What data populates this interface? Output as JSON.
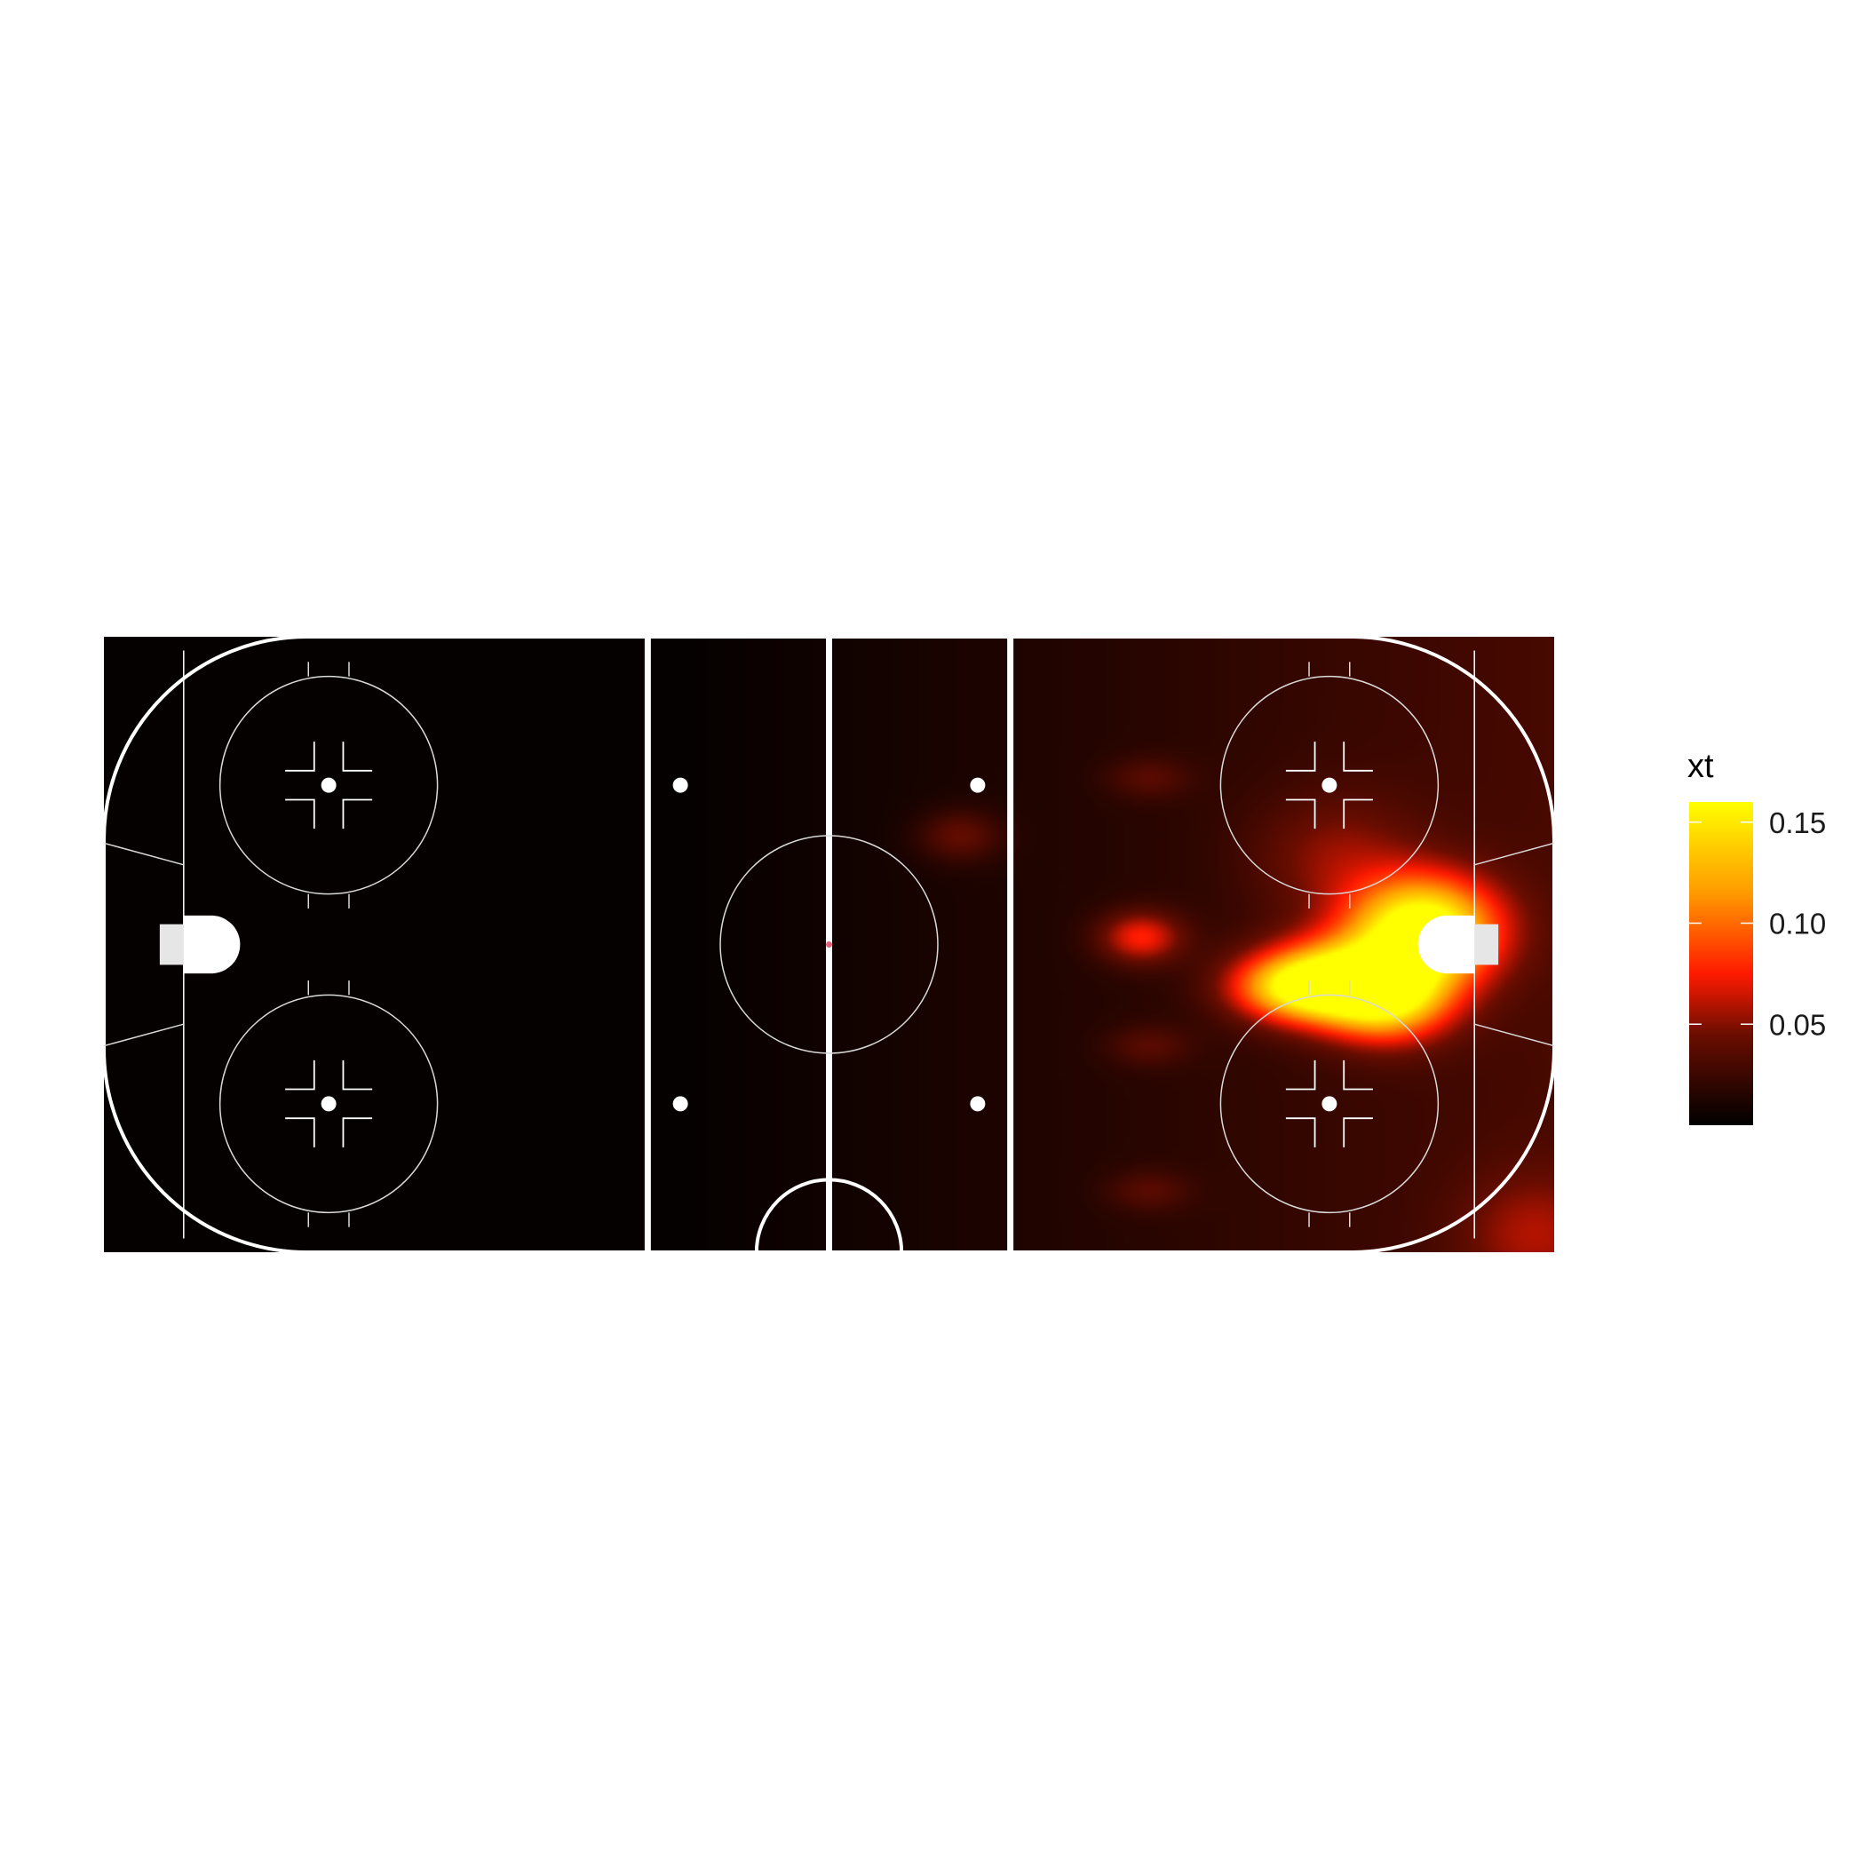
{
  "chart_data": {
    "type": "heatmap",
    "title": "",
    "xlabel": "",
    "ylabel": "",
    "fill_variable": "xt",
    "x_range": [
      -100,
      100
    ],
    "y_range": [
      -42.5,
      42.5
    ],
    "color_scale": {
      "stops": [
        {
          "value": 0.0,
          "color": "#000000"
        },
        {
          "value": 0.045,
          "color": "#6b0d00"
        },
        {
          "value": 0.075,
          "color": "#ff1a00"
        },
        {
          "value": 0.115,
          "color": "#ff9a00"
        },
        {
          "value": 0.16,
          "color": "#ffff00"
        }
      ],
      "limits": [
        0.0,
        0.16
      ],
      "legend_ticks": [
        {
          "value": 0.05,
          "label": "0.05"
        },
        {
          "value": 0.1,
          "label": "0.10"
        },
        {
          "value": 0.15,
          "label": "0.15"
        }
      ]
    },
    "hotspots": [
      {
        "x": 82,
        "y": 2,
        "sx": 7,
        "sy": 5,
        "value": 0.16
      },
      {
        "x": 71,
        "y": -5,
        "sx": 8,
        "sy": 4,
        "value": 0.13
      },
      {
        "x": 64,
        "y": -6,
        "sx": 6,
        "sy": 3,
        "value": 0.08
      },
      {
        "x": 77,
        "y": -8,
        "sx": 6,
        "sy": 4,
        "value": 0.09
      },
      {
        "x": 43,
        "y": 1,
        "sx": 4,
        "sy": 2.5,
        "value": 0.06
      },
      {
        "x": 70,
        "y": 12,
        "sx": 8,
        "sy": 6,
        "value": 0.03
      },
      {
        "x": 18,
        "y": 15,
        "sx": 4,
        "sy": 2.5,
        "value": 0.03
      },
      {
        "x": 44,
        "y": 23,
        "sx": 4,
        "sy": 2,
        "value": 0.02
      },
      {
        "x": 44,
        "y": -14,
        "sx": 4,
        "sy": 2,
        "value": 0.02
      },
      {
        "x": 44,
        "y": -34,
        "sx": 4,
        "sy": 2,
        "value": 0.02
      },
      {
        "x": 97,
        "y": -40,
        "sx": 7,
        "sy": 6,
        "value": 0.03
      }
    ]
  },
  "legend": {
    "title": "xt"
  }
}
